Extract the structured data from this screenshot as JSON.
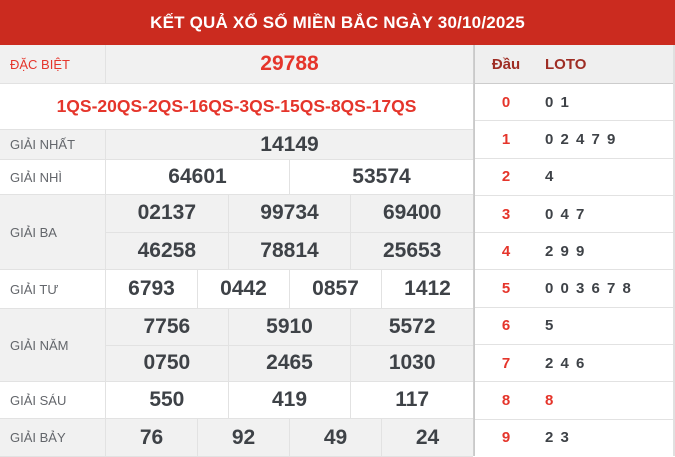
{
  "header": {
    "title": "KẾT QUẢ XỔ SỐ MIỀN BẮC NGÀY 30/10/2025"
  },
  "results_table": {
    "rows": [
      {
        "kind": "single",
        "label": "ĐẶC BIỆT",
        "label_color": "red",
        "values": [
          "29788"
        ],
        "value_color": "red"
      },
      {
        "kind": "fullspan",
        "text": "1QS-20QS-2QS-16QS-3QS-15QS-8QS-17QS"
      },
      {
        "kind": "single",
        "label": "GIẢI NHẤT",
        "values": [
          "14149"
        ]
      },
      {
        "kind": "single",
        "label": "GIẢI NHÌ",
        "values": [
          "64601",
          "53574"
        ]
      },
      {
        "kind": "double",
        "label": "GIẢI BA",
        "rows": [
          [
            "02137",
            "99734",
            "69400"
          ],
          [
            "46258",
            "78814",
            "25653"
          ]
        ]
      },
      {
        "kind": "single",
        "label": "GIẢI TƯ",
        "values": [
          "6793",
          "0442",
          "0857",
          "1412"
        ]
      },
      {
        "kind": "double",
        "label": "GIẢI NĂM",
        "rows": [
          [
            "7756",
            "5910",
            "5572"
          ],
          [
            "0750",
            "2465",
            "1030"
          ]
        ]
      },
      {
        "kind": "single",
        "label": "GIẢI SÁU",
        "values": [
          "550",
          "419",
          "117"
        ]
      },
      {
        "kind": "single",
        "label": "GIẢI BẢY",
        "values": [
          "76",
          "92",
          "49",
          "24"
        ]
      }
    ]
  },
  "loto_panel": {
    "dau_header": "Đầu",
    "loto_header": "LOTO",
    "rows": [
      {
        "dau": "0",
        "loto": "0 1",
        "highlight": false
      },
      {
        "dau": "1",
        "loto": "0 2 4 7 9",
        "highlight": false
      },
      {
        "dau": "2",
        "loto": "4",
        "highlight": false
      },
      {
        "dau": "3",
        "loto": "0 4 7",
        "highlight": false
      },
      {
        "dau": "4",
        "loto": "2 9 9",
        "highlight": false
      },
      {
        "dau": "5",
        "loto": "0 0 3 6 7 8",
        "highlight": false
      },
      {
        "dau": "6",
        "loto": "5",
        "highlight": false
      },
      {
        "dau": "7",
        "loto": "2 4 6",
        "highlight": false
      },
      {
        "dau": "8",
        "loto": "8",
        "highlight": true
      },
      {
        "dau": "9",
        "loto": "2 3",
        "highlight": false
      }
    ]
  },
  "colors": {
    "header_background": "#cb2b1f",
    "accent_red": "#e5352b",
    "panel_header_red": "#9e2d24",
    "number_dark": "#3e4247",
    "shade_row": "#f1f1f1"
  }
}
